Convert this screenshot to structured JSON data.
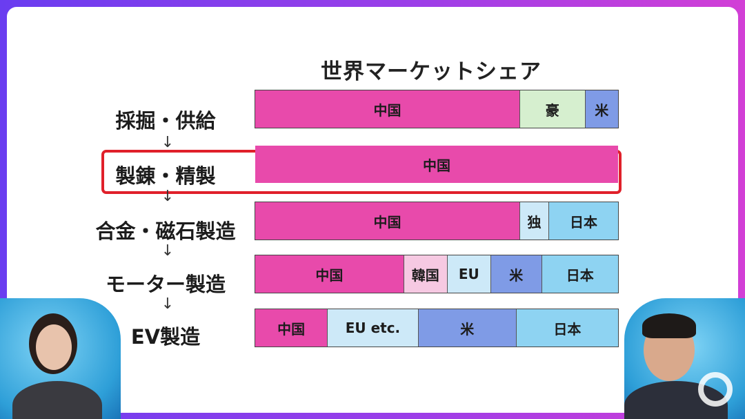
{
  "title": "世界マーケットシェア",
  "stages": [
    {
      "label": "採掘・供給",
      "highlighted": false,
      "segments": [
        {
          "label": "中国",
          "share": 0.73,
          "color": "#e84aab"
        },
        {
          "label": "豪",
          "share": 0.18,
          "color": "#d6efcf"
        },
        {
          "label": "米",
          "share": 0.09,
          "color": "#7f9be6"
        }
      ]
    },
    {
      "label": "製錬・精製",
      "highlighted": true,
      "segments": [
        {
          "label": "中国",
          "share": 1.0,
          "color": "#e84aab"
        }
      ]
    },
    {
      "label": "合金・磁石製造",
      "highlighted": false,
      "segments": [
        {
          "label": "中国",
          "share": 0.73,
          "color": "#e84aab"
        },
        {
          "label": "独",
          "share": 0.08,
          "color": "#cde9f8"
        },
        {
          "label": "日本",
          "share": 0.19,
          "color": "#8ed3f2"
        }
      ]
    },
    {
      "label": "モーター製造",
      "highlighted": false,
      "segments": [
        {
          "label": "中国",
          "share": 0.41,
          "color": "#e84aab"
        },
        {
          "label": "韓国",
          "share": 0.12,
          "color": "#f6c9e2"
        },
        {
          "label": "EU",
          "share": 0.12,
          "color": "#cde9f8"
        },
        {
          "label": "米",
          "share": 0.14,
          "color": "#7f9be6"
        },
        {
          "label": "日本",
          "share": 0.21,
          "color": "#8ed3f2"
        }
      ]
    },
    {
      "label": "EV製造",
      "highlighted": false,
      "segments": [
        {
          "label": "中国",
          "share": 0.2,
          "color": "#e84aab"
        },
        {
          "label": "EU etc.",
          "share": 0.25,
          "color": "#cde9f8"
        },
        {
          "label": "米",
          "share": 0.27,
          "color": "#7f9be6"
        },
        {
          "label": "日本",
          "share": 0.28,
          "color": "#8ed3f2"
        }
      ]
    }
  ],
  "arrow_glyph": "↓",
  "colors": {
    "highlight_border": "#e0202a",
    "accent_gradient_start": "#6a3df0",
    "accent_gradient_end": "#d23fd6"
  }
}
